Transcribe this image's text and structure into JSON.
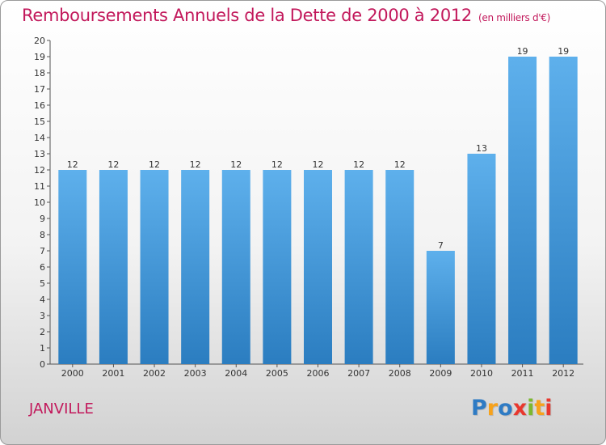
{
  "chart_data": {
    "type": "bar",
    "title": "Remboursements Annuels de la Dette de 2000 à 2012",
    "subtitle": "(en milliers d'€)",
    "categories": [
      "2000",
      "2001",
      "2002",
      "2003",
      "2004",
      "2005",
      "2006",
      "2007",
      "2008",
      "2009",
      "2010",
      "2011",
      "2012"
    ],
    "values": [
      12,
      12,
      12,
      12,
      12,
      12,
      12,
      12,
      12,
      7,
      13,
      19,
      19
    ],
    "data_labels": [
      "12",
      "12",
      "12",
      "12",
      "12",
      "12",
      "12",
      "12",
      "12",
      "7",
      "13",
      "19",
      "19"
    ],
    "ylim": [
      0,
      20
    ],
    "yticks": [
      "0",
      "1",
      "2",
      "3",
      "4",
      "5",
      "6",
      "7",
      "8",
      "9",
      "10",
      "11",
      "12",
      "13",
      "14",
      "15",
      "16",
      "17",
      "18",
      "19",
      "20"
    ],
    "grid": false,
    "bar_color": "#4a9fe0"
  },
  "footer": {
    "commune": "JANVILLE",
    "logo": {
      "letters": [
        "P",
        "r",
        "o",
        "x",
        "i",
        "t",
        "i"
      ],
      "colors": [
        "#2e7bc4",
        "#f7a21b",
        "#2e7bc4",
        "#e8372d",
        "#7cb82f",
        "#f7a21b",
        "#e8372d"
      ]
    }
  }
}
